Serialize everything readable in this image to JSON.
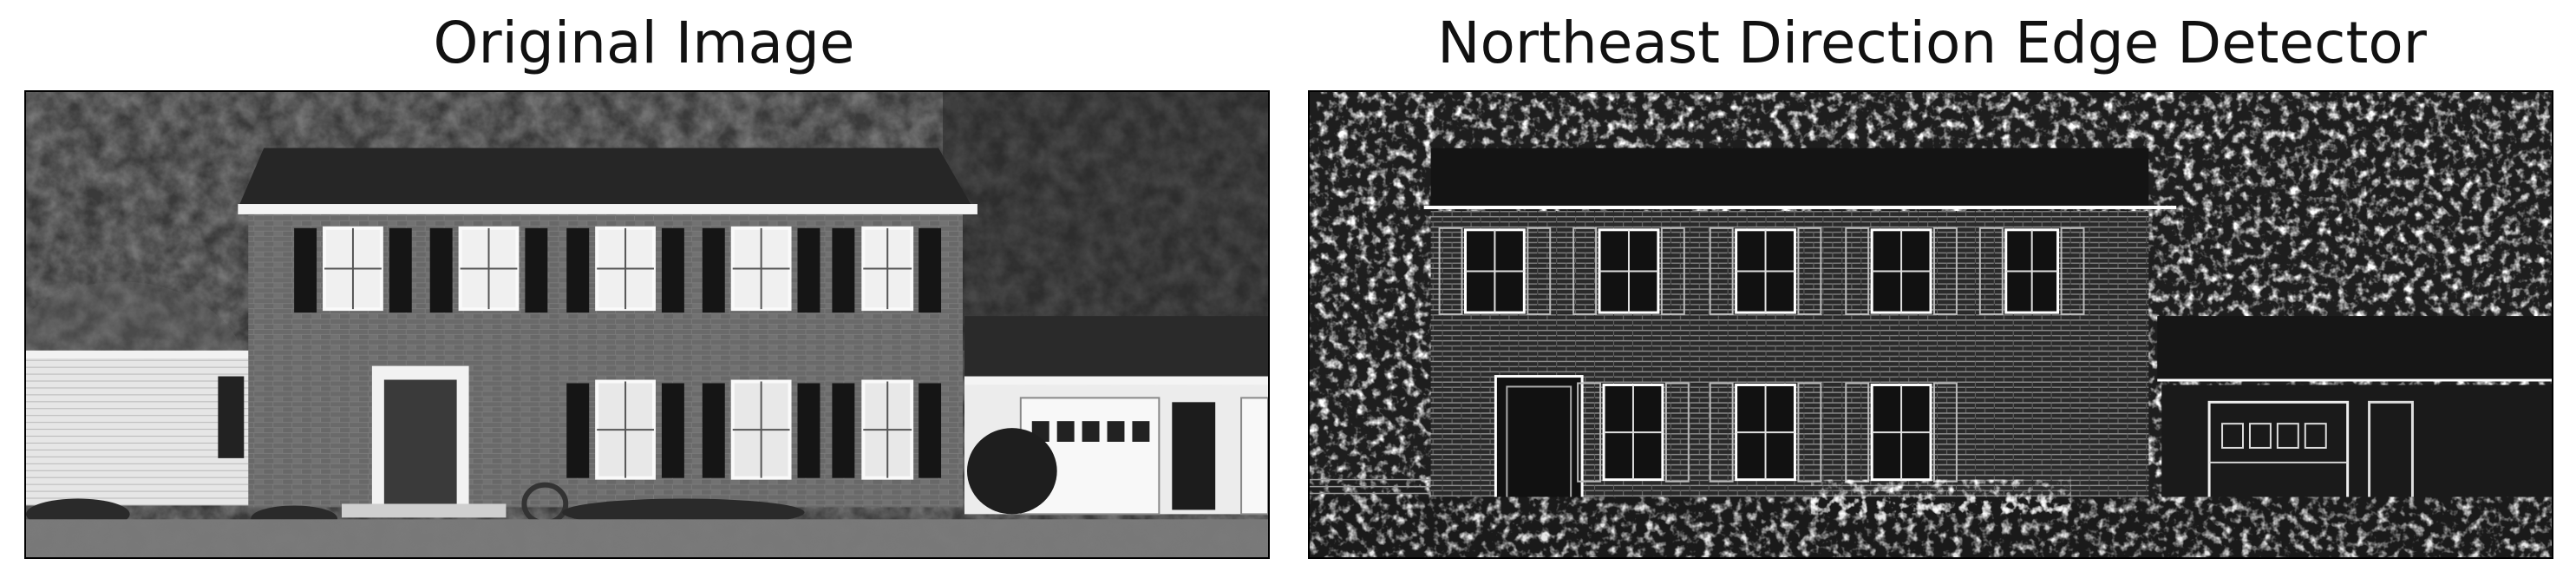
{
  "panels": [
    {
      "title": "Original Image"
    },
    {
      "title": "Northeast Direction Edge Detector"
    }
  ]
}
